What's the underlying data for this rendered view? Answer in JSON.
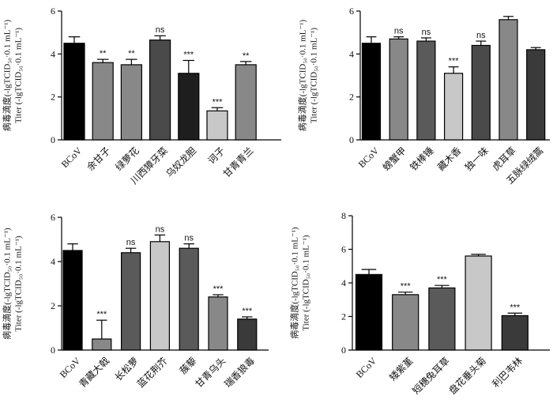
{
  "ylabel_cn": "病毒滴度(-lgTCID₅₀·0.1 mL⁻¹)",
  "ylabel_en": "Titer (-lgTCID₅₀·0.1 mL⁻¹)",
  "chart_data": [
    {
      "type": "bar",
      "title": "",
      "ylim": [
        0,
        6
      ],
      "yticks": [
        0,
        2,
        4,
        6
      ],
      "categories": [
        "BCoV",
        "余甘子",
        "绿萝花",
        "川西獐牙菜",
        "乌奴龙胆",
        "诃子",
        "甘青青兰"
      ],
      "values": [
        4.5,
        3.6,
        3.5,
        4.65,
        3.1,
        1.35,
        3.5
      ],
      "errors": [
        0.3,
        0.15,
        0.25,
        0.2,
        0.6,
        0.15,
        0.15
      ],
      "significance": [
        "",
        "**",
        "**",
        "ns",
        "***",
        "***",
        "**"
      ],
      "colors": [
        "#000000",
        "#888888",
        "#888888",
        "#4a4a4a",
        "#1e1e1e",
        "#c8c8c8",
        "#888888"
      ]
    },
    {
      "type": "bar",
      "title": "",
      "ylim": [
        0,
        6
      ],
      "yticks": [
        0,
        2,
        4,
        6
      ],
      "categories": [
        "BCoV",
        "螃蟹甲",
        "铁棒锤",
        "藏木香",
        "独一味",
        "虎耳草",
        "五脉绿绒蒿"
      ],
      "values": [
        4.5,
        4.7,
        4.6,
        3.1,
        4.4,
        5.6,
        4.2
      ],
      "errors": [
        0.3,
        0.1,
        0.15,
        0.3,
        0.2,
        0.15,
        0.1
      ],
      "significance": [
        "",
        "ns",
        "ns",
        "***",
        "ns",
        "",
        ""
      ],
      "colors": [
        "#000000",
        "#888888",
        "#5a5a5a",
        "#c8c8c8",
        "#4a4a4a",
        "#888888",
        "#3a3a3a"
      ]
    },
    {
      "type": "bar",
      "title": "",
      "ylim": [
        0,
        6
      ],
      "yticks": [
        0,
        2,
        4,
        6
      ],
      "categories": [
        "BCoV",
        "青藏大戟",
        "长松萝",
        "蓝花荆芥",
        "蔟藜",
        "甘青乌头",
        "瑞香狼毒"
      ],
      "values": [
        4.5,
        0.5,
        4.4,
        4.9,
        4.6,
        2.4,
        1.4
      ],
      "errors": [
        0.3,
        0.85,
        0.2,
        0.3,
        0.2,
        0.1,
        0.1
      ],
      "significance": [
        "",
        "***",
        "ns",
        "ns",
        "ns",
        "***",
        "***"
      ],
      "colors": [
        "#000000",
        "#888888",
        "#5a5a5a",
        "#c8c8c8",
        "#5a5a5a",
        "#888888",
        "#3a3a3a"
      ]
    },
    {
      "type": "bar",
      "title": "",
      "ylim": [
        0,
        8
      ],
      "yticks": [
        0,
        2,
        4,
        6,
        8
      ],
      "categories": [
        "BCoV",
        "矮紫堇",
        "短穗兔耳草",
        "盘花垂头菊",
        "利巴韦林"
      ],
      "values": [
        4.5,
        3.3,
        3.7,
        5.6,
        2.05
      ],
      "errors": [
        0.3,
        0.15,
        0.15,
        0.1,
        0.15
      ],
      "significance": [
        "",
        "***",
        "***",
        "",
        "***"
      ],
      "colors": [
        "#000000",
        "#888888",
        "#5a5a5a",
        "#c8c8c8",
        "#3a3a3a"
      ]
    }
  ]
}
